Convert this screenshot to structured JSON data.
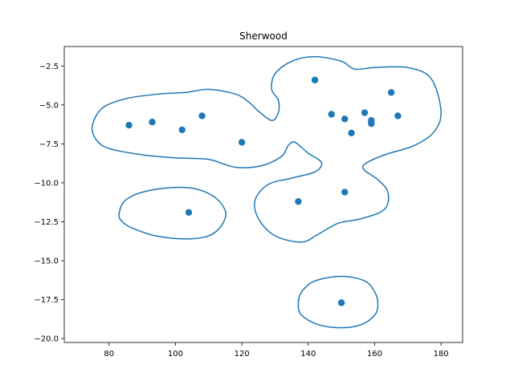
{
  "chart_data": {
    "type": "scatter",
    "title": "Sherwood",
    "xlabel": "",
    "ylabel": "",
    "xlim": [
      66.5,
      186.5
    ],
    "ylim": [
      -20.25,
      -1.25
    ],
    "grid": false,
    "x_ticks": [
      80,
      100,
      120,
      140,
      160,
      180
    ],
    "x_tick_labels": [
      "80",
      "100",
      "120",
      "140",
      "160",
      "180"
    ],
    "y_ticks": [
      -2.5,
      -5.0,
      -7.5,
      -10.0,
      -12.5,
      -15.0,
      -17.5,
      -20.0
    ],
    "y_tick_labels": [
      "−2.5",
      "−5.0",
      "−7.5",
      "−10.0",
      "−12.5",
      "−15.0",
      "−17.5",
      "−20.0"
    ],
    "series": [
      {
        "marker_color": "#1f77b4",
        "points": [
          {
            "x": 86,
            "y": -6.3
          },
          {
            "x": 93,
            "y": -6.1
          },
          {
            "x": 102,
            "y": -6.6
          },
          {
            "x": 108,
            "y": -5.7
          },
          {
            "x": 120,
            "y": -7.4
          },
          {
            "x": 142,
            "y": -3.4
          },
          {
            "x": 147,
            "y": -5.6
          },
          {
            "x": 151,
            "y": -5.9
          },
          {
            "x": 153,
            "y": -6.8
          },
          {
            "x": 157,
            "y": -5.5
          },
          {
            "x": 159,
            "y": -6.0
          },
          {
            "x": 159,
            "y": -6.2
          },
          {
            "x": 165,
            "y": -4.2
          },
          {
            "x": 167,
            "y": -5.7
          },
          {
            "x": 151,
            "y": -10.6
          },
          {
            "x": 137,
            "y": -11.2
          },
          {
            "x": 104,
            "y": -11.9
          },
          {
            "x": 150,
            "y": -17.7
          }
        ]
      }
    ],
    "contours": [
      {
        "color": "#1f77b4",
        "points": [
          [
            75,
            -6.3
          ],
          [
            78,
            -5.2
          ],
          [
            85,
            -4.6
          ],
          [
            95,
            -4.3
          ],
          [
            103,
            -4.2
          ],
          [
            110,
            -4.0
          ],
          [
            118,
            -4.3
          ],
          [
            122,
            -4.8
          ],
          [
            125,
            -5.4
          ],
          [
            129,
            -6.0
          ],
          [
            131,
            -5.5
          ],
          [
            131,
            -4.7
          ],
          [
            129,
            -4.0
          ],
          [
            130,
            -3.0
          ],
          [
            135,
            -2.2
          ],
          [
            142,
            -1.9
          ],
          [
            150,
            -2.2
          ],
          [
            154,
            -2.7
          ],
          [
            160,
            -2.6
          ],
          [
            170,
            -2.6
          ],
          [
            177,
            -3.3
          ],
          [
            180,
            -5.4
          ],
          [
            178,
            -6.7
          ],
          [
            172,
            -7.6
          ],
          [
            163,
            -8.2
          ],
          [
            157,
            -8.8
          ],
          [
            157,
            -9.2
          ],
          [
            161,
            -9.8
          ],
          [
            164,
            -10.6
          ],
          [
            163,
            -11.7
          ],
          [
            156,
            -12.3
          ],
          [
            149,
            -12.6
          ],
          [
            143,
            -13.3
          ],
          [
            138,
            -13.8
          ],
          [
            130,
            -13.4
          ],
          [
            125,
            -12.3
          ],
          [
            124,
            -11.1
          ],
          [
            128,
            -10.1
          ],
          [
            135,
            -9.7
          ],
          [
            142,
            -9.3
          ],
          [
            144,
            -8.7
          ],
          [
            140,
            -8.1
          ],
          [
            136,
            -7.4
          ],
          [
            134,
            -7.6
          ],
          [
            132,
            -8.3
          ],
          [
            126,
            -8.9
          ],
          [
            118,
            -9.0
          ],
          [
            110,
            -8.5
          ],
          [
            100,
            -8.4
          ],
          [
            90,
            -8.2
          ],
          [
            80,
            -7.8
          ],
          [
            76,
            -7.2
          ]
        ]
      },
      {
        "color": "#1f77b4",
        "points": [
          [
            83,
            -12.0
          ],
          [
            85,
            -11.1
          ],
          [
            92,
            -10.5
          ],
          [
            103,
            -10.3
          ],
          [
            111,
            -10.8
          ],
          [
            115,
            -11.8
          ],
          [
            114,
            -12.7
          ],
          [
            110,
            -13.4
          ],
          [
            103,
            -13.6
          ],
          [
            94,
            -13.4
          ],
          [
            87,
            -12.9
          ],
          [
            84,
            -12.5
          ]
        ]
      },
      {
        "color": "#1f77b4",
        "points": [
          [
            137,
            -17.8
          ],
          [
            138,
            -17.0
          ],
          [
            142,
            -16.3
          ],
          [
            150,
            -16.0
          ],
          [
            157,
            -16.3
          ],
          [
            160,
            -17.0
          ],
          [
            161,
            -17.8
          ],
          [
            160,
            -18.5
          ],
          [
            156,
            -19.1
          ],
          [
            150,
            -19.3
          ],
          [
            143,
            -19.1
          ],
          [
            138,
            -18.5
          ]
        ]
      }
    ]
  }
}
